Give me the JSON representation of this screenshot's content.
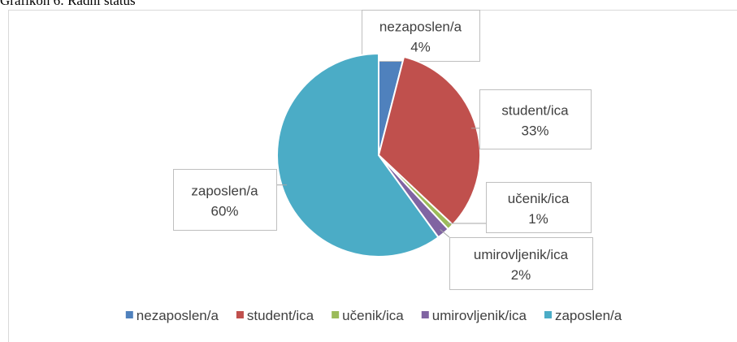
{
  "chart_data": {
    "type": "pie",
    "title": "Grafikon 6: Radni status",
    "categories": [
      "nezaposlen/a",
      "student/ica",
      "učenik/ica",
      "umirovljenik/ica",
      "zaposlen/a"
    ],
    "values": [
      4,
      33,
      1,
      2,
      60
    ],
    "value_labels": [
      "4%",
      "33%",
      "1%",
      "2%",
      "60%"
    ],
    "colors": [
      "#4f81bd",
      "#c0504d",
      "#9bbb59",
      "#8064a2",
      "#4bacc6"
    ],
    "legend": "bottom"
  }
}
